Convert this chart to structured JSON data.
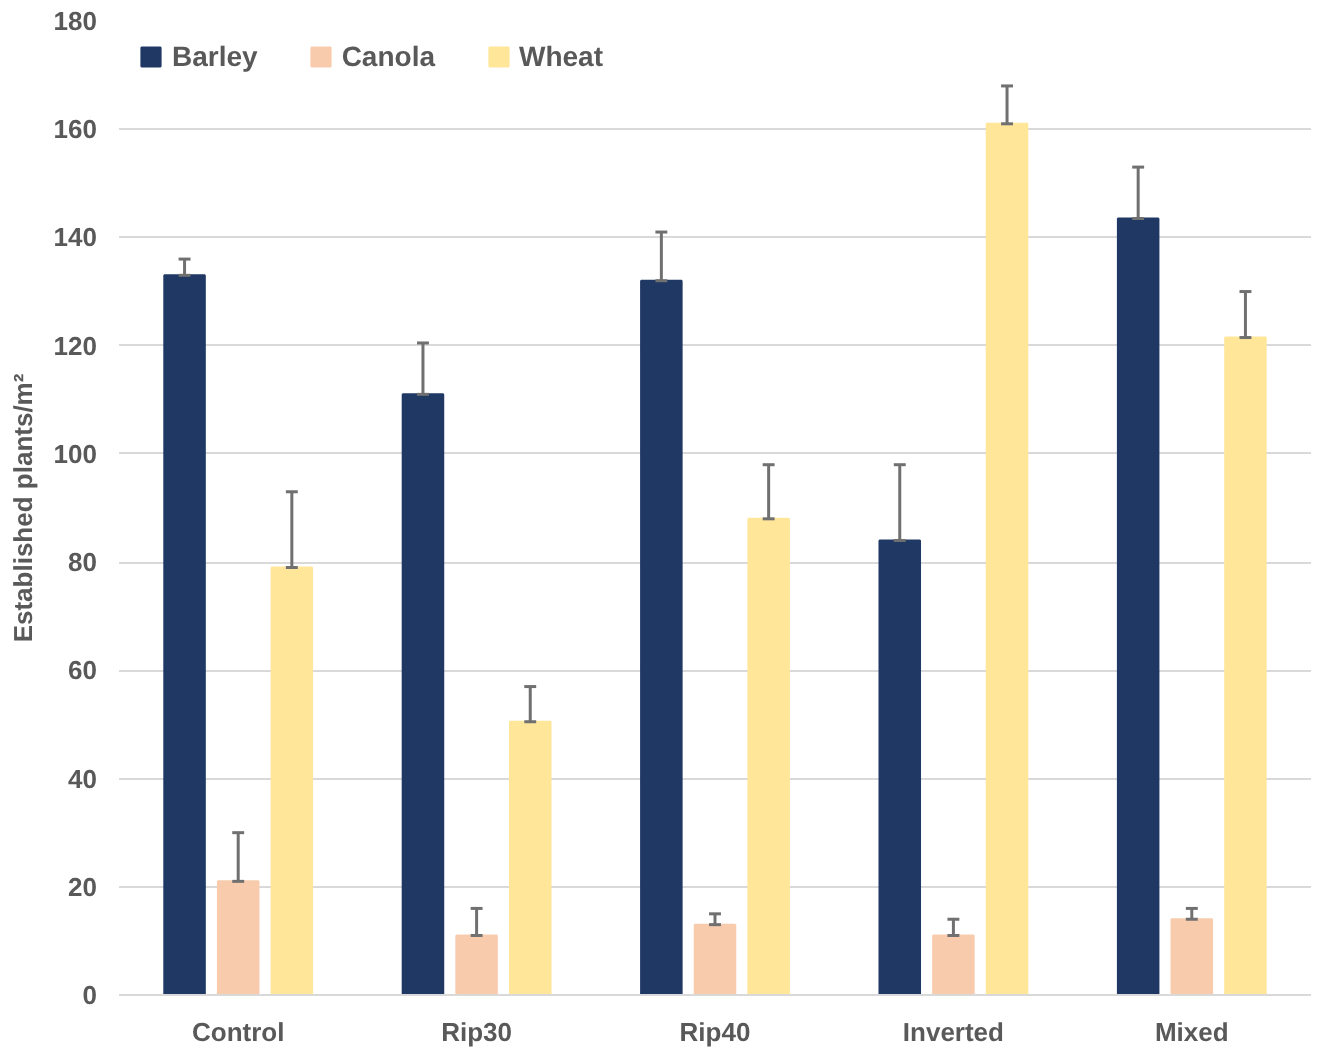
{
  "chart_data": {
    "type": "bar",
    "ylabel": "Established plants/m²",
    "categories": [
      "Control",
      "Rip30",
      "Rip40",
      "Inverted",
      "Mixed"
    ],
    "series": [
      {
        "name": "Barley",
        "color": "#203864",
        "values": [
          133,
          111,
          132,
          84,
          143.5
        ],
        "errors": [
          [
            133,
            136
          ],
          [
            111,
            120.5
          ],
          [
            132,
            141
          ],
          [
            84,
            98
          ],
          [
            143.5,
            153
          ]
        ]
      },
      {
        "name": "Canola",
        "color": "#f8cbad",
        "values": [
          21,
          11,
          13,
          11,
          14
        ],
        "errors": [
          [
            21,
            30
          ],
          [
            11,
            16
          ],
          [
            13,
            15
          ],
          [
            11,
            14
          ],
          [
            14,
            16
          ]
        ]
      },
      {
        "name": "Wheat",
        "color": "#ffe699",
        "values": [
          79,
          50.5,
          88,
          161,
          121.5
        ],
        "errors": [
          [
            79,
            93
          ],
          [
            50.5,
            57
          ],
          [
            88,
            98
          ],
          [
            161,
            168
          ],
          [
            121.5,
            130
          ]
        ]
      }
    ],
    "ylim": [
      0,
      180
    ],
    "yticks": [
      0,
      20,
      40,
      60,
      80,
      100,
      120,
      140,
      160,
      180
    ],
    "grid": "y",
    "legend": "top left"
  }
}
